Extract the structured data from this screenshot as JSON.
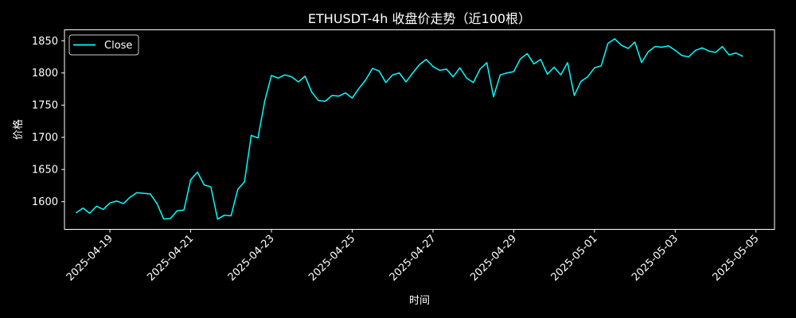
{
  "chart_data": {
    "type": "line",
    "title": "ETHUSDT-4h 收盘价走势（近100根）",
    "xlabel": "时间",
    "ylabel": "价格",
    "x_start": "2025-04-18T04:00",
    "x_step_hours": 4,
    "xlim": [
      "2025-04-17T21:00",
      "2025-05-05T11:00"
    ],
    "ylim": [
      1557,
      1867
    ],
    "x_ticks": [
      "2025-04-19",
      "2025-04-21",
      "2025-04-23",
      "2025-04-25",
      "2025-04-27",
      "2025-04-29",
      "2025-05-01",
      "2025-05-03",
      "2025-05-05"
    ],
    "y_ticks": [
      1600,
      1650,
      1700,
      1750,
      1800,
      1850
    ],
    "grid": false,
    "legend": {
      "placement": "top-left",
      "entries": [
        "Close"
      ]
    },
    "series": [
      {
        "name": "Close",
        "color": "#00ffff",
        "values": [
          1583,
          1590,
          1582,
          1593,
          1588,
          1598,
          1601,
          1597,
          1607,
          1614,
          1613,
          1612,
          1597,
          1573,
          1574,
          1586,
          1587,
          1634,
          1646,
          1626,
          1623,
          1573,
          1579,
          1578,
          1619,
          1631,
          1703,
          1699,
          1756,
          1796,
          1792,
          1797,
          1794,
          1786,
          1795,
          1770,
          1757,
          1756,
          1765,
          1764,
          1769,
          1761,
          1776,
          1789,
          1807,
          1803,
          1785,
          1797,
          1800,
          1786,
          1800,
          1813,
          1821,
          1810,
          1804,
          1806,
          1794,
          1808,
          1792,
          1785,
          1806,
          1816,
          1763,
          1797,
          1800,
          1802,
          1822,
          1830,
          1814,
          1821,
          1798,
          1809,
          1797,
          1816,
          1765,
          1787,
          1794,
          1808,
          1811,
          1846,
          1853,
          1843,
          1838,
          1848,
          1816,
          1833,
          1841,
          1840,
          1842,
          1835,
          1827,
          1825,
          1835,
          1839,
          1834,
          1832,
          1841,
          1828,
          1831,
          1826
        ]
      }
    ]
  }
}
